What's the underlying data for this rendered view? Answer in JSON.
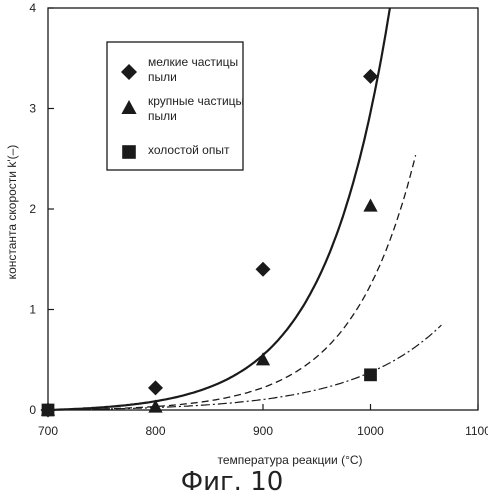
{
  "chart_data": {
    "type": "scatter",
    "xlabel": "температура реакции (°C)",
    "ylabel": "константа скорости  k'(–)",
    "xlim": [
      700,
      1100
    ],
    "ylim": [
      0,
      4
    ],
    "x_ticks": [
      700,
      800,
      900,
      1000,
      1100
    ],
    "y_ticks": [
      0,
      1,
      2,
      3,
      4
    ],
    "grid": false,
    "legend_position": "top-left",
    "series": [
      {
        "name": "мелкие частицы пыли",
        "legend_lines": [
          "мелкие частицы",
          "пыли"
        ],
        "marker": "diamond",
        "line_style": "solid",
        "points": [
          [
            700,
            0.0
          ],
          [
            800,
            0.22
          ],
          [
            900,
            1.4
          ],
          [
            1000,
            3.32
          ]
        ],
        "curve": {
          "x_start": 700,
          "x_end": 1018,
          "a": 0.0205,
          "b": 0.0166
        }
      },
      {
        "name": "крупные частицы пыли",
        "legend_lines": [
          "крупные частицы",
          "пыли"
        ],
        "marker": "triangle",
        "line_style": "dashed",
        "points": [
          [
            700,
            0.0
          ],
          [
            800,
            0.03
          ],
          [
            900,
            0.5
          ],
          [
            1000,
            2.03
          ]
        ],
        "curve": {
          "x_start": 700,
          "x_end": 1042,
          "a": 0.00786,
          "b": 0.0169
        }
      },
      {
        "name": "холостой опыт",
        "legend_lines": [
          "холостой опыт"
        ],
        "marker": "square",
        "line_style": "dashdot",
        "points": [
          [
            700,
            0.0
          ],
          [
            1000,
            0.35
          ]
        ],
        "curve": {
          "x_start": 700,
          "x_end": 1066,
          "a": 0.01032,
          "b": 0.01207
        }
      }
    ]
  },
  "caption": "Фиг. 10",
  "colors": {
    "ink": "#1a1a1a"
  }
}
